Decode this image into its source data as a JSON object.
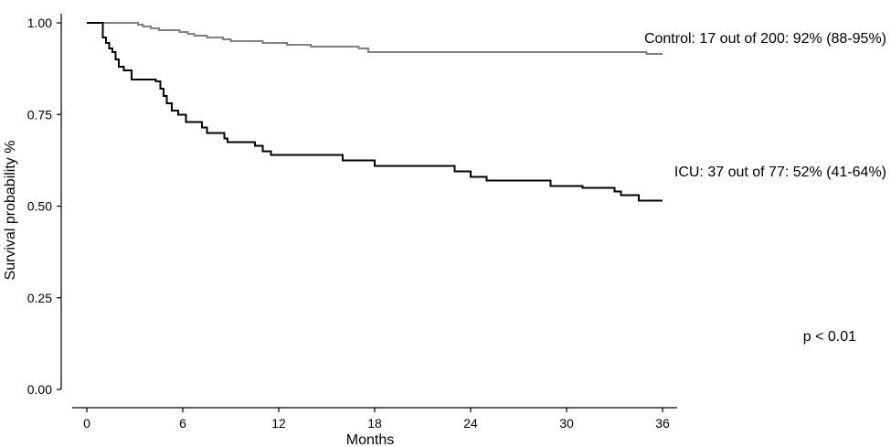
{
  "chart_data": {
    "type": "line",
    "subtype": "kaplan-meier-step",
    "title": "",
    "xlabel": "Months",
    "ylabel": "Survival probability %",
    "xlim": [
      0,
      36
    ],
    "ylim": [
      0,
      1
    ],
    "x_ticks": [
      0,
      6,
      12,
      18,
      24,
      30,
      36
    ],
    "y_ticks": [
      0.0,
      0.25,
      0.5,
      0.75,
      1.0
    ],
    "x_tick_labels": [
      "0",
      "6",
      "12",
      "18",
      "24",
      "30",
      "36"
    ],
    "y_tick_labels": [
      "0.00",
      "0.25",
      "0.50",
      "0.75",
      "1.00"
    ],
    "grid": false,
    "legend": "none",
    "series": [
      {
        "color": "#808080",
        "points": [
          [
            0,
            1.0
          ],
          [
            3.2,
            0.995
          ],
          [
            3.5,
            0.99
          ],
          [
            4.0,
            0.985
          ],
          [
            4.5,
            0.98
          ],
          [
            5.8,
            0.975
          ],
          [
            6.3,
            0.97
          ],
          [
            6.7,
            0.965
          ],
          [
            7.5,
            0.96
          ],
          [
            8.5,
            0.955
          ],
          [
            9.0,
            0.95
          ],
          [
            11.0,
            0.945
          ],
          [
            12.5,
            0.94
          ],
          [
            14.0,
            0.935
          ],
          [
            17.0,
            0.93
          ],
          [
            17.6,
            0.92
          ],
          [
            22.0,
            0.92
          ],
          [
            35.0,
            0.915
          ],
          [
            36.0,
            0.915
          ]
        ],
        "annotation": "Control: 17 out of 200: 92% (88-95%)"
      },
      {
        "color": "#000000",
        "points": [
          [
            0,
            1.0
          ],
          [
            0.9,
            1.0
          ],
          [
            1.0,
            0.96
          ],
          [
            1.2,
            0.945
          ],
          [
            1.4,
            0.93
          ],
          [
            1.6,
            0.92
          ],
          [
            1.8,
            0.9
          ],
          [
            2.0,
            0.88
          ],
          [
            2.3,
            0.87
          ],
          [
            2.8,
            0.845
          ],
          [
            4.3,
            0.84
          ],
          [
            4.6,
            0.82
          ],
          [
            4.8,
            0.8
          ],
          [
            5.0,
            0.78
          ],
          [
            5.3,
            0.76
          ],
          [
            5.7,
            0.75
          ],
          [
            6.2,
            0.73
          ],
          [
            7.2,
            0.715
          ],
          [
            7.5,
            0.7
          ],
          [
            8.6,
            0.685
          ],
          [
            8.8,
            0.675
          ],
          [
            10.5,
            0.665
          ],
          [
            11.0,
            0.65
          ],
          [
            11.5,
            0.64
          ],
          [
            16.0,
            0.625
          ],
          [
            18.0,
            0.61
          ],
          [
            23.0,
            0.595
          ],
          [
            24.0,
            0.58
          ],
          [
            25.0,
            0.57
          ],
          [
            29.0,
            0.555
          ],
          [
            31.0,
            0.55
          ],
          [
            33.0,
            0.54
          ],
          [
            33.4,
            0.53
          ],
          [
            34.5,
            0.515
          ],
          [
            36.0,
            0.515
          ]
        ],
        "annotation": "ICU: 37 out of 77: 52% (41-64%)"
      }
    ],
    "p_value_label": "p < 0.01"
  }
}
